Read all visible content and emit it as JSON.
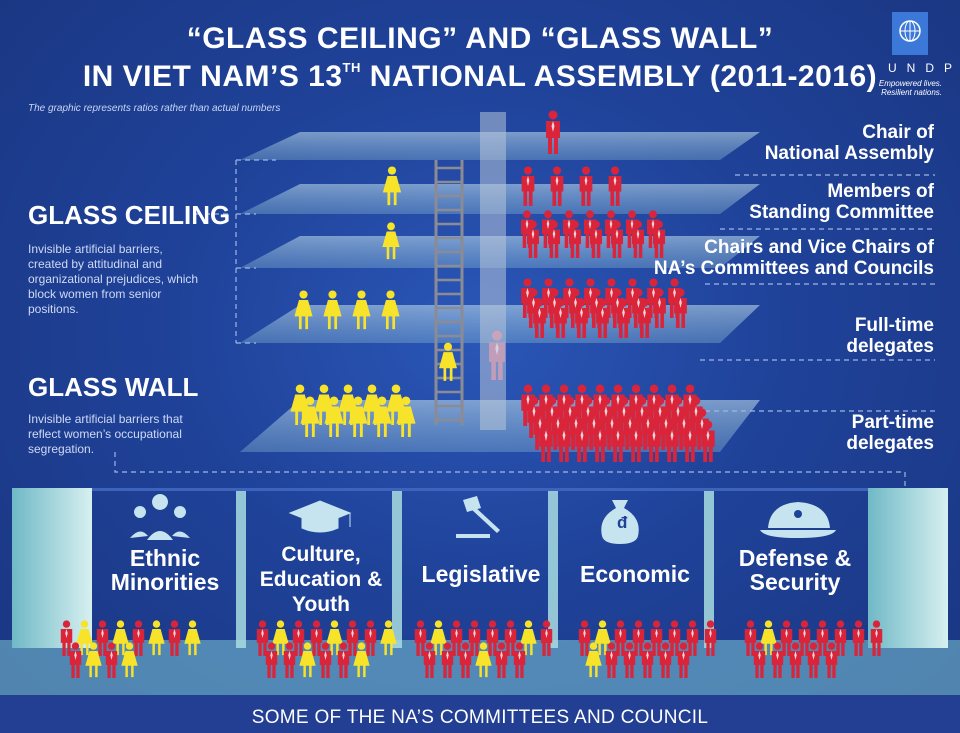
{
  "title": {
    "line1": "“GLASS CEILING” AND “GLASS WALL”",
    "line2_pre": "IN VIET NAM’S 13",
    "line2_sup": "TH",
    "line2_post": " NATIONAL ASSEMBLY (2011-2016)"
  },
  "note": "The graphic represents ratios rather than actual numbers",
  "logo": {
    "letters": "UNDP",
    "tagline1": "Empowered lives.",
    "tagline2": "Resilient nations."
  },
  "glass_ceiling": {
    "heading": "GLASS CEILING",
    "description": "Invisible artificial barriers, created by attitudinal and organizational prejudices, which block women from senior positions."
  },
  "glass_wall": {
    "heading": "GLASS WALL",
    "description": "Invisible artificial barriers that reflect women’s occupational segregation."
  },
  "levels": [
    {
      "label1": "Chair of",
      "label2": "National Assembly",
      "women": 0,
      "men": 1
    },
    {
      "label1": "Members of",
      "label2": "Standing Committee",
      "women": 1,
      "men": 4
    },
    {
      "label1": "Chairs and Vice Chairs of",
      "label2": "NA’s Committees and Councils",
      "women": 1,
      "men": 14
    },
    {
      "label1": "Full-time",
      "label2": "delegates",
      "women": 4,
      "men": 22
    },
    {
      "label1": "Part-time",
      "label2": "delegates",
      "women": 10,
      "men": 40
    }
  ],
  "committees": [
    {
      "name1": "Ethnic",
      "name2": "Minorities",
      "name3": "",
      "icon": "people-group-icon",
      "women": 6,
      "men": 6
    },
    {
      "name1": "Culture,",
      "name2": "Education &",
      "name3": "Youth",
      "icon": "graduation-cap-icon",
      "women": 5,
      "men": 9
    },
    {
      "name1": "Legislative",
      "name2": "",
      "name3": "",
      "icon": "gavel-icon",
      "women": 3,
      "men": 11
    },
    {
      "name1": "Economic",
      "name2": "",
      "name3": "",
      "icon": "money-bag-icon",
      "women": 2,
      "men": 12
    },
    {
      "name1": "Defense &",
      "name2": "Security",
      "name3": "",
      "icon": "military-cap-icon",
      "women": 1,
      "men": 12
    }
  ],
  "money_symbol": "đ",
  "footer": "SOME OF THE NA’S COMMITTEES AND COUNCIL",
  "colors": {
    "women": "#f7e32a",
    "men": "#d9243a",
    "background": "#1e3d8f",
    "glass": "#b8d8e8"
  }
}
